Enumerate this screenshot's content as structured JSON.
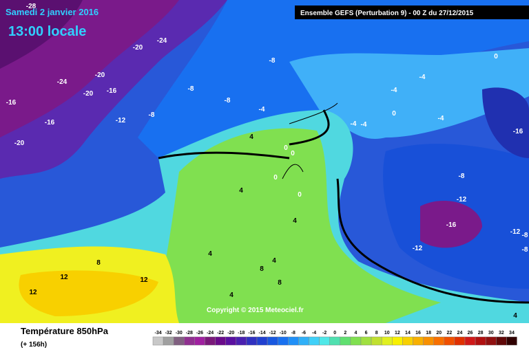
{
  "header": {
    "date": "Samedi 2 janvier 2016",
    "time": "13:00 locale",
    "run": "Ensemble GEFS  (Perturbation 9)  -  00 Z du 27/12/2015"
  },
  "copyright": "Copyright © 2015 Meteociel.fr",
  "footer": {
    "title": "Température 850hPa",
    "lead": "(+ 156h)"
  },
  "contour_labels": [
    -28,
    -24,
    -20,
    -20,
    -24,
    -20,
    -16,
    -16,
    -16,
    -12,
    -8,
    -20,
    -8,
    -8,
    -8,
    -4,
    -4,
    -4,
    0,
    -4,
    0,
    -4,
    -4,
    4,
    0,
    0,
    0,
    0,
    -16,
    4,
    -8,
    -12,
    4,
    -16,
    -12,
    -8,
    -12,
    4,
    4,
    8,
    8,
    12,
    12,
    8,
    12,
    4,
    4,
    -8
  ],
  "legend": {
    "values": [
      -34,
      -32,
      -30,
      -28,
      -26,
      -24,
      -22,
      -20,
      -18,
      -16,
      -14,
      -12,
      -10,
      -8,
      -6,
      -4,
      -2,
      0,
      2,
      4,
      6,
      8,
      10,
      12,
      14,
      16,
      18,
      20,
      22,
      24,
      26,
      28,
      30,
      32,
      34
    ],
    "colors": [
      "#c8c8c8",
      "#a0a0a0",
      "#806080",
      "#903090",
      "#a020a0",
      "#7a187a",
      "#6a0a8a",
      "#5a10a0",
      "#4a20b0",
      "#3030c0",
      "#2040d0",
      "#1858e0",
      "#1870f0",
      "#2090f8",
      "#30b0f8",
      "#40d0f8",
      "#50e8e8",
      "#50e0b0",
      "#60e070",
      "#80e050",
      "#a0e040",
      "#c0e030",
      "#e0f020",
      "#f8f000",
      "#f8d000",
      "#f8b000",
      "#f89000",
      "#f87000",
      "#f05000",
      "#e03000",
      "#d01818",
      "#b01010",
      "#901010",
      "#600808",
      "#300000"
    ]
  }
}
